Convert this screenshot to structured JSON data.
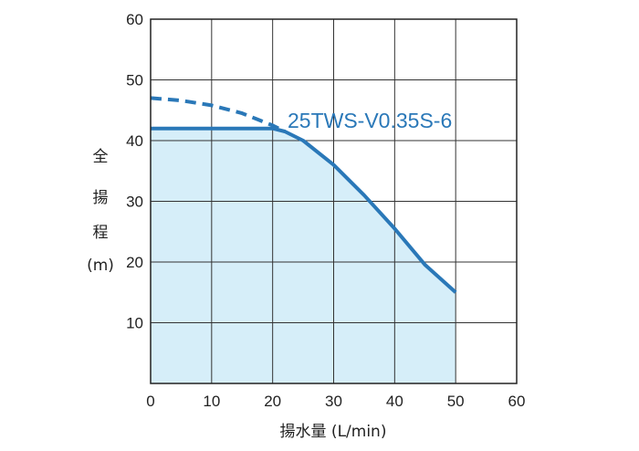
{
  "chart_data": {
    "type": "line",
    "title": "",
    "xlabel": "揚水量 (L/min)",
    "ylabel_chars": [
      "全",
      "揚",
      "程"
    ],
    "ylabel_unit": "(m)",
    "xlim": [
      0,
      60
    ],
    "ylim": [
      0,
      60
    ],
    "x_ticks": [
      "0",
      "10",
      "20",
      "30",
      "40",
      "50",
      "60"
    ],
    "y_ticks": [
      "10",
      "20",
      "30",
      "40",
      "50",
      "60"
    ],
    "grid": true,
    "colors": {
      "curve": "#2a78b8",
      "fill": "#d6eef9",
      "grid": "#333333",
      "axis": "#222222"
    },
    "series": [
      {
        "name": "25TWS-V0.35S-6",
        "style": "solid",
        "points": [
          [
            0,
            42
          ],
          [
            20,
            42
          ],
          [
            22,
            41.5
          ],
          [
            25,
            40
          ],
          [
            30,
            36
          ],
          [
            35,
            31
          ],
          [
            40,
            25.5
          ],
          [
            45,
            19.5
          ],
          [
            50,
            15
          ]
        ]
      },
      {
        "style": "dashed",
        "points": [
          [
            0,
            47
          ],
          [
            5,
            46.6
          ],
          [
            10,
            45.8
          ],
          [
            15,
            44.5
          ],
          [
            20,
            42.5
          ],
          [
            22,
            41.5
          ]
        ]
      }
    ],
    "shaded_region": {
      "x_range": [
        0,
        50
      ],
      "y_top": 42
    }
  }
}
